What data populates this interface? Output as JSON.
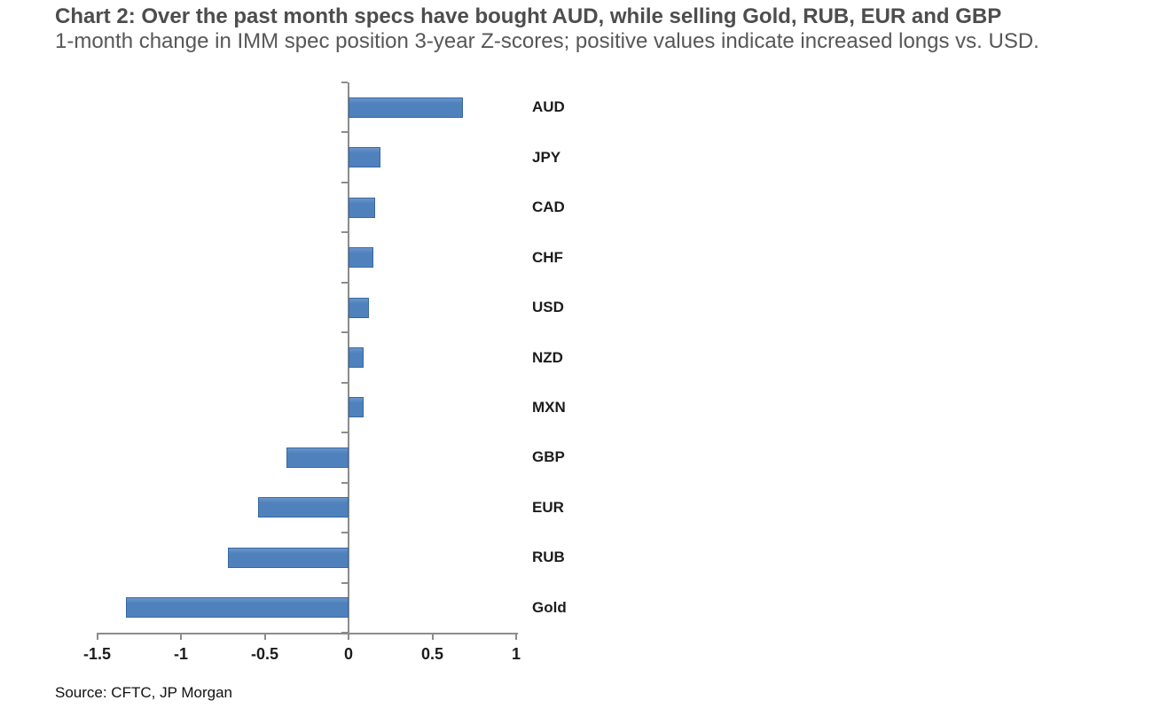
{
  "header": {
    "title": "Chart 2: Over the past month specs have bought AUD, while selling Gold, RUB, EUR and GBP",
    "subtitle": "1-month change in IMM spec position 3-year Z-scores; positive values indicate increased longs vs. USD."
  },
  "chart_data": {
    "type": "bar",
    "orientation": "horizontal",
    "title": "Chart 2: Over the past month specs have bought AUD, while selling Gold, RUB, EUR and GBP",
    "subtitle": "1-month change in IMM spec position 3-year Z-scores; positive values indicate increased longs vs. USD.",
    "categories": [
      "AUD",
      "JPY",
      "CAD",
      "CHF",
      "USD",
      "NZD",
      "MXN",
      "GBP",
      "EUR",
      "RUB",
      "Gold"
    ],
    "values": [
      0.68,
      0.19,
      0.16,
      0.15,
      0.12,
      0.09,
      0.09,
      -0.37,
      -0.54,
      -0.72,
      -1.33
    ],
    "x_ticks": [
      -1.5,
      -1,
      -0.5,
      0,
      0.5,
      1
    ],
    "x_tick_labels": [
      "-1.5",
      "-1",
      "-0.5",
      "0",
      "0.5",
      "1"
    ],
    "xlim": [
      -1.5,
      1
    ],
    "xlabel": "",
    "ylabel": "",
    "grid": false,
    "legend": false,
    "bar_color": "#4f81bd",
    "bar_border_color": "#3a68a1",
    "axis_color": "#8c8c8c",
    "label_color": "#1c1c1c",
    "title_color": "#4d4d4d"
  },
  "footer": {
    "source": "Source: CFTC, JP Morgan"
  }
}
